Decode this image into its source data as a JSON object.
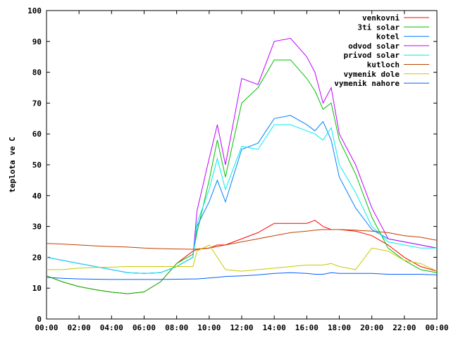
{
  "chart_data": {
    "type": "line",
    "title": "",
    "xlabel": "",
    "ylabel": "teplota ve C",
    "x": [
      "00:00",
      "01:00",
      "02:00",
      "03:00",
      "04:00",
      "05:00",
      "06:00",
      "07:00",
      "08:00",
      "09:00",
      "09:15",
      "10:00",
      "10:30",
      "11:00",
      "12:00",
      "13:00",
      "14:00",
      "15:00",
      "16:00",
      "16:30",
      "17:00",
      "17:30",
      "18:00",
      "19:00",
      "20:00",
      "21:00",
      "22:00",
      "23:00",
      "24:00"
    ],
    "xticks": [
      "00:00",
      "02:00",
      "04:00",
      "06:00",
      "08:00",
      "10:00",
      "12:00",
      "14:00",
      "16:00",
      "18:00",
      "20:00",
      "22:00",
      "00:00"
    ],
    "yticks": [
      0,
      10,
      20,
      30,
      40,
      50,
      60,
      70,
      80,
      90,
      100
    ],
    "ylim": [
      0,
      100
    ],
    "xlim": [
      0,
      24
    ],
    "legend_position": "top-right",
    "grid": false,
    "series": [
      {
        "name": "venkovni",
        "color": "#ff0000",
        "values": [
          14,
          12,
          10.5,
          9.5,
          8.7,
          8.2,
          8.8,
          12,
          18,
          22,
          22.5,
          23,
          24,
          24,
          26,
          28,
          31,
          31,
          31,
          32,
          30,
          29,
          29,
          28.5,
          27,
          24,
          20,
          17,
          15.5
        ]
      },
      {
        "name": "3ti solar",
        "color": "#00c000",
        "values": [
          14,
          12,
          10.5,
          9.5,
          8.7,
          8.2,
          8.8,
          12,
          18,
          21,
          28,
          45,
          58,
          46,
          70,
          75,
          84,
          84,
          78,
          74,
          68,
          70,
          58,
          47,
          33,
          23,
          19,
          16,
          15
        ]
      },
      {
        "name": "kotel",
        "color": "#0080ff",
        "values": [
          20,
          19,
          18,
          17,
          16,
          15,
          14.8,
          15,
          17,
          20,
          30,
          38,
          45,
          38,
          55,
          57,
          65,
          66,
          63,
          61,
          64,
          58,
          46,
          36,
          29,
          26,
          25,
          24,
          23
        ]
      },
      {
        "name": "odvod solar",
        "color": "#c000ff",
        "values": [
          20,
          19,
          18,
          17,
          16,
          15,
          14.8,
          15,
          17,
          20,
          35,
          52,
          63,
          50,
          78,
          76,
          90,
          91,
          85,
          80,
          70,
          75,
          60,
          50,
          36,
          26,
          25,
          24,
          23
        ]
      },
      {
        "name": "privod solar",
        "color": "#00eeee",
        "values": [
          20,
          19,
          18,
          17,
          16,
          15,
          14.8,
          15,
          17,
          20,
          31,
          42,
          52,
          42,
          56,
          55,
          63,
          63,
          61,
          60,
          58,
          62,
          50,
          41,
          30,
          25,
          24,
          23,
          23
        ]
      },
      {
        "name": "kutloch",
        "color": "#c04000",
        "values": [
          24.5,
          24.3,
          24,
          23.7,
          23.5,
          23.3,
          23,
          22.8,
          22.7,
          22.6,
          22.7,
          23,
          23.5,
          24,
          25,
          26,
          27,
          28,
          28.5,
          28.8,
          29,
          29,
          29,
          28.8,
          28.5,
          28,
          27,
          26.5,
          25.5
        ]
      },
      {
        "name": "vymenik dole",
        "color": "#c8c800",
        "values": [
          16,
          16,
          16.5,
          16.7,
          16.8,
          17,
          17,
          17,
          17,
          17,
          22,
          24,
          20,
          16,
          15.5,
          16,
          16.5,
          17,
          17.5,
          17.5,
          17.5,
          18,
          17,
          16,
          23,
          22,
          19,
          18,
          15.5
        ]
      },
      {
        "name": "vymenik nahore",
        "color": "#0060ff",
        "values": [
          13.5,
          13.2,
          13,
          12.9,
          12.8,
          12.8,
          12.8,
          12.8,
          12.9,
          13,
          13,
          13.3,
          13.5,
          13.8,
          14,
          14.3,
          14.8,
          15,
          14.8,
          14.5,
          14.5,
          15,
          14.8,
          14.8,
          14.8,
          14.5,
          14.5,
          14.5,
          14.3
        ]
      }
    ]
  }
}
